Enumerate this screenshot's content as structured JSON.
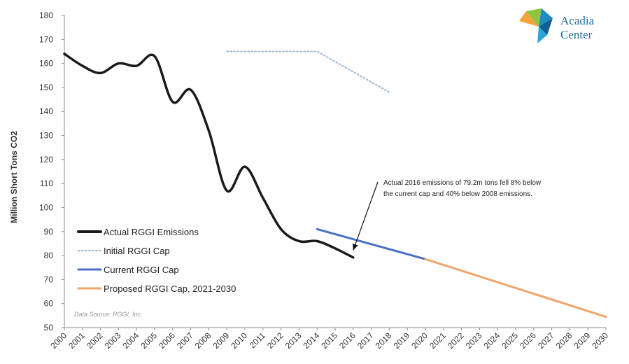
{
  "chart_data": {
    "type": "line",
    "xlabel": "",
    "ylabel": "Million Short Tons CO2",
    "ylim": [
      50,
      180
    ],
    "yticks": [
      50,
      60,
      70,
      80,
      90,
      100,
      110,
      120,
      130,
      140,
      150,
      160,
      170,
      180
    ],
    "xlim": [
      2000,
      2030
    ],
    "xticks": [
      2000,
      2001,
      2002,
      2003,
      2004,
      2005,
      2006,
      2007,
      2008,
      2009,
      2010,
      2011,
      2012,
      2013,
      2014,
      2015,
      2016,
      2017,
      2018,
      2019,
      2020,
      2021,
      2022,
      2023,
      2024,
      2025,
      2026,
      2027,
      2028,
      2029,
      2030
    ],
    "grid": false,
    "legend_position": "bottom-left",
    "series": [
      {
        "name": "Actual RGGI Emissions",
        "color": "#1a1a1a",
        "style": "solid",
        "x": [
          2000,
          2001,
          2002,
          2003,
          2004,
          2005,
          2006,
          2007,
          2008,
          2009,
          2010,
          2011,
          2012,
          2013,
          2014,
          2015,
          2016
        ],
        "y": [
          164,
          159,
          156,
          160,
          159,
          163,
          144,
          149,
          132,
          107,
          117,
          104,
          91,
          86,
          86,
          83,
          79.2
        ]
      },
      {
        "name": "Initial RGGI Cap",
        "color": "#9fb8d8",
        "style": "dotted",
        "x": [
          2009,
          2014,
          2018
        ],
        "y": [
          165,
          165,
          148
        ]
      },
      {
        "name": "Current RGGI Cap",
        "color": "#4a6fc4",
        "style": "solid",
        "x": [
          2014,
          2020
        ],
        "y": [
          91,
          78.5
        ]
      },
      {
        "name": "Proposed RGGI Cap, 2021-2030",
        "color": "#f0a56a",
        "style": "solid",
        "x": [
          2020,
          2030
        ],
        "y": [
          78.5,
          54.5
        ]
      }
    ],
    "annotations": [
      {
        "text_lines": [
          "Actual 2016 emissions of 79.2m tons fell 8% below",
          "the current cap and 40% below 2008 emissions."
        ],
        "points_to": {
          "x": 2016,
          "y": 81
        }
      }
    ],
    "source_note": "Data Source: RGGI, Inc.",
    "logo": {
      "line1": "Acadia",
      "line2": "Center"
    }
  }
}
